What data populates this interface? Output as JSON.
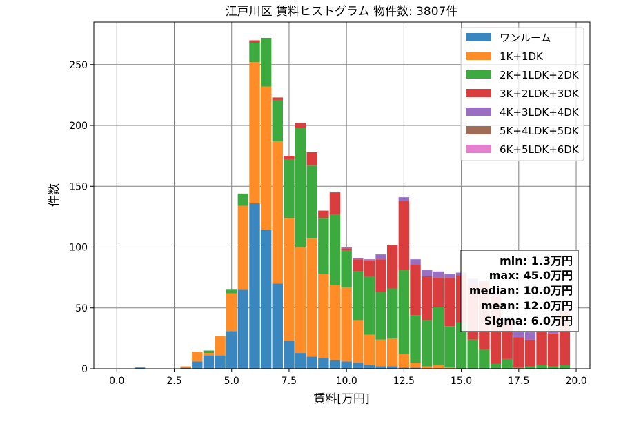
{
  "chart_data": {
    "type": "bar",
    "stacked": true,
    "title": "江戸川区 賃料ヒストグラム  物件数: 3807件",
    "xlabel": "賃料[万円]",
    "ylabel": "件数",
    "xlim": [
      -1.0,
      20.6
    ],
    "ylim": [
      0,
      285
    ],
    "xticks": [
      "0.0",
      "2.5",
      "5.0",
      "7.5",
      "10.0",
      "12.5",
      "15.0",
      "17.5",
      "20.0"
    ],
    "yticks": [
      "0",
      "50",
      "100",
      "150",
      "200",
      "250"
    ],
    "grid": true,
    "legend_position": "upper right",
    "bin_width": 0.5,
    "x": [
      1.0,
      1.5,
      2.0,
      2.5,
      3.0,
      3.5,
      4.0,
      4.5,
      5.0,
      5.5,
      6.0,
      6.5,
      7.0,
      7.5,
      8.0,
      8.5,
      9.0,
      9.5,
      10.0,
      10.5,
      11.0,
      11.5,
      12.0,
      12.5,
      13.0,
      13.5,
      14.0,
      14.5,
      15.0,
      15.5,
      16.0,
      16.5,
      17.0,
      17.5,
      18.0,
      18.5,
      19.0,
      19.5
    ],
    "series": [
      {
        "name": "ワンルーム",
        "color": "#3a86be",
        "values": [
          1,
          0,
          0,
          0,
          1,
          6,
          11,
          11,
          31,
          65,
          136,
          114,
          70,
          23,
          13,
          10,
          9,
          7,
          6,
          5,
          3,
          2,
          2,
          1,
          1,
          0,
          0,
          0,
          0,
          0,
          0,
          0,
          0,
          0,
          0,
          0,
          0,
          0
        ]
      },
      {
        "name": "1K+1DK",
        "color": "#ff8c26",
        "values": [
          0,
          0,
          0,
          0,
          1,
          8,
          2,
          16,
          31,
          69,
          116,
          118,
          117,
          101,
          87,
          97,
          69,
          62,
          61,
          35,
          25,
          22,
          23,
          11,
          4,
          2,
          3,
          1,
          0,
          0,
          0,
          0,
          0,
          0,
          0,
          0,
          0,
          0
        ]
      },
      {
        "name": "2K+1LDK+2DK",
        "color": "#3daa3f",
        "values": [
          0,
          0,
          0,
          0,
          0,
          0,
          2,
          0,
          3,
          10,
          16,
          40,
          34,
          48,
          98,
          60,
          46,
          58,
          30,
          40,
          48,
          39,
          41,
          69,
          39,
          38,
          48,
          34,
          38,
          24,
          16,
          4,
          8,
          1,
          2,
          3,
          2,
          3
        ]
      },
      {
        "name": "3K+2LDK+3DK",
        "color": "#d93d3d",
        "values": [
          0,
          0,
          0,
          0,
          0,
          0,
          0,
          0,
          0,
          0,
          2,
          0,
          2,
          3,
          4,
          11,
          6,
          18,
          2,
          10,
          13,
          27,
          36,
          57,
          42,
          36,
          24,
          40,
          39,
          45,
          55,
          56,
          32,
          25,
          22,
          28,
          27,
          45
        ]
      },
      {
        "name": "4K+3LDK+4DK",
        "color": "#9a6ec2",
        "values": [
          0,
          0,
          0,
          0,
          0,
          0,
          0,
          0,
          0,
          0,
          0,
          0,
          0,
          0,
          0,
          0,
          0,
          0,
          1,
          1,
          1,
          4,
          0,
          3,
          4,
          5,
          5,
          3,
          2,
          5,
          1,
          3,
          3,
          5,
          6,
          0,
          3,
          2
        ]
      },
      {
        "name": "5K+4LDK+5DK",
        "color": "#a06b57",
        "values": [
          0,
          0,
          0,
          0,
          0,
          0,
          0,
          0,
          0,
          0,
          0,
          0,
          0,
          0,
          0,
          0,
          0,
          0,
          0,
          0,
          0,
          0,
          0,
          0,
          0,
          0,
          0,
          0,
          0,
          0,
          0,
          0,
          0,
          0,
          0,
          0,
          0,
          0
        ]
      },
      {
        "name": "6K+5LDK+6DK",
        "color": "#e37fcb",
        "values": [
          0,
          0,
          0,
          0,
          0,
          0,
          0,
          0,
          0,
          0,
          0,
          0,
          0,
          0,
          0,
          0,
          0,
          0,
          0,
          0,
          0,
          0,
          0,
          0,
          0,
          0,
          0,
          0,
          0,
          0,
          0,
          0,
          0,
          0,
          0,
          0,
          0,
          0
        ]
      }
    ],
    "annotation": [
      "min: 1.3万円",
      "max: 45.0万円",
      "median: 10.0万円",
      "mean: 12.0万円",
      "Sigma: 6.0万円"
    ]
  }
}
